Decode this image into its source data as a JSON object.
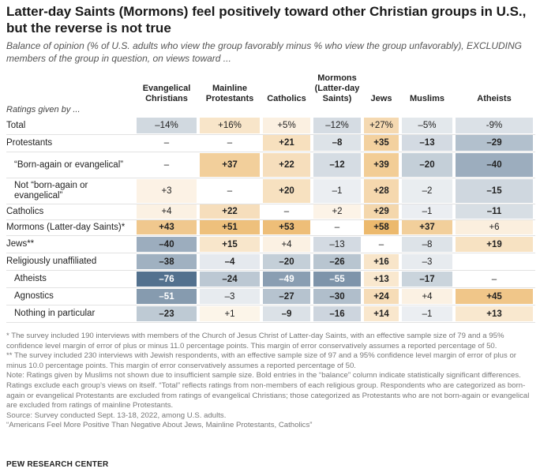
{
  "title": "Latter-day Saints (Mormons) feel positively toward other Christian groups in U.S., but the reverse is not true",
  "subtitle": "Balance of opinion (% of U.S. adults who view the group favorably minus % who view the group unfavorably), EXCLUDING members of the group in question, on views toward ...",
  "ratings_label": "Ratings given by ...",
  "colors": {
    "positive": "#e6a13c",
    "negative": "#4a6a88",
    "neutral": "#ffffff"
  },
  "chart_data": {
    "type": "table",
    "title": "Latter-day Saints (Mormons) feel positively toward other Christian groups in U.S., but the reverse is not true",
    "columns": [
      "Evangelical Christians",
      "Mainline Protestants",
      "Catholics",
      "Mormons (Latter-day Saints)",
      "Jews",
      "Muslims",
      "Atheists"
    ],
    "rows": [
      {
        "label": "Total",
        "indent": false,
        "values": [
          -14,
          16,
          5,
          -12,
          27,
          -5,
          -9
        ],
        "display": [
          "–14%",
          "+16%",
          "+5%",
          "–12%",
          "+27%",
          "–5%",
          "-9%"
        ],
        "bold": [
          false,
          false,
          false,
          false,
          false,
          false,
          false
        ]
      },
      {
        "label": "Protestants",
        "indent": false,
        "values": [
          null,
          null,
          21,
          -8,
          35,
          -13,
          -29
        ],
        "display": [
          "–",
          "–",
          "+21",
          "–8",
          "+35",
          "–13",
          "–29"
        ],
        "bold": [
          false,
          false,
          true,
          true,
          true,
          true,
          true
        ]
      },
      {
        "label": "“Born-again or evangelical”",
        "indent": true,
        "values": [
          null,
          37,
          22,
          -12,
          39,
          -20,
          -40
        ],
        "display": [
          "–",
          "+37",
          "+22",
          "–12",
          "+39",
          "–20",
          "–40"
        ],
        "bold": [
          false,
          true,
          true,
          true,
          true,
          true,
          true
        ]
      },
      {
        "label": "Not “born-again or evangelical”",
        "indent": true,
        "values": [
          3,
          null,
          20,
          -1,
          28,
          -2,
          -15
        ],
        "display": [
          "+3",
          "–",
          "+20",
          "–1",
          "+28",
          "–2",
          "–15"
        ],
        "bold": [
          false,
          false,
          true,
          false,
          true,
          false,
          true
        ]
      },
      {
        "label": "Catholics",
        "indent": false,
        "values": [
          4,
          22,
          null,
          2,
          29,
          -1,
          -11
        ],
        "display": [
          "+4",
          "+22",
          "–",
          "+2",
          "+29",
          "–1",
          "–11"
        ],
        "bold": [
          false,
          true,
          false,
          false,
          true,
          false,
          true
        ]
      },
      {
        "label": "Mormons (Latter-day Saints)*",
        "indent": false,
        "values": [
          43,
          51,
          53,
          null,
          58,
          37,
          6
        ],
        "display": [
          "+43",
          "+51",
          "+53",
          "–",
          "+58",
          "+37",
          "+6"
        ],
        "bold": [
          true,
          true,
          true,
          false,
          true,
          true,
          false
        ]
      },
      {
        "label": "Jews**",
        "indent": false,
        "values": [
          -40,
          15,
          4,
          -13,
          null,
          -8,
          19
        ],
        "display": [
          "–40",
          "+15",
          "+4",
          "–13",
          "–",
          "–8",
          "+19"
        ],
        "bold": [
          true,
          true,
          false,
          false,
          false,
          false,
          true
        ]
      },
      {
        "label": "Religiously unaffiliated",
        "indent": false,
        "values": [
          -38,
          -4,
          -20,
          -26,
          16,
          -3,
          null
        ],
        "display": [
          "–38",
          "–4",
          "–20",
          "–26",
          "+16",
          "–3",
          ""
        ],
        "bold": [
          true,
          true,
          true,
          true,
          true,
          false,
          false
        ]
      },
      {
        "label": "Atheists",
        "indent": true,
        "values": [
          -76,
          -24,
          -49,
          -55,
          13,
          -17,
          null
        ],
        "display": [
          "–76",
          "–24",
          "–49",
          "–55",
          "+13",
          "–17",
          "–"
        ],
        "bold": [
          true,
          true,
          true,
          true,
          true,
          true,
          false
        ]
      },
      {
        "label": "Agnostics",
        "indent": true,
        "values": [
          -51,
          -3,
          -27,
          -30,
          24,
          4,
          45
        ],
        "display": [
          "–51",
          "–3",
          "–27",
          "–30",
          "+24",
          "+4",
          "+45"
        ],
        "bold": [
          true,
          false,
          true,
          true,
          true,
          false,
          true
        ]
      },
      {
        "label": "Nothing in particular",
        "indent": true,
        "values": [
          -23,
          1,
          -9,
          -16,
          14,
          -1,
          13
        ],
        "display": [
          "–23",
          "+1",
          "–9",
          "–16",
          "+14",
          "–1",
          "+13"
        ],
        "bold": [
          true,
          false,
          true,
          true,
          true,
          false,
          true
        ]
      }
    ]
  },
  "notes": [
    "* The survey included 190 interviews with members of the Church of Jesus Christ of Latter-day Saints, with an effective sample size of 79 and a 95% confidence level margin of error of plus or minus 11.0 percentage points. This margin of error conservatively assumes a reported percentage of 50.",
    "** The survey included 230 interviews with Jewish respondents, with an effective sample size of 97 and a 95% confidence level margin of error of plus or minus 10.0 percentage points. This margin of error conservatively assumes a reported percentage of 50.",
    "Note: Ratings given by Muslims not shown due to insufficient sample size. Bold entries in the “balance” column indicate statistically significant differences. Ratings exclude each group’s views on itself. “Total” reflects ratings from non-members of each religious group. Respondents who are categorized as born-again or evangelical Protestants are excluded from ratings of evangelical Christians; those categorized as Protestants who are not born-again or evangelical are excluded from ratings of mainline Protestants.",
    "Source: Survey conducted Sept. 13-18, 2022, among U.S. adults.",
    "“Americans Feel More Positive Than Negative About Jews, Mainline Protestants, Catholics”"
  ],
  "brand": "PEW RESEARCH CENTER"
}
